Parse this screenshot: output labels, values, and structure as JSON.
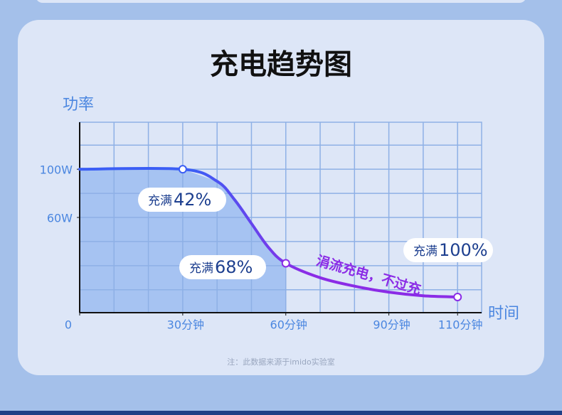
{
  "chart_data": {
    "type": "line",
    "title": "充电趋势图",
    "y_label": "功率",
    "x_label": "时间",
    "x": [
      0,
      30,
      40,
      45,
      50,
      55,
      60,
      70,
      80,
      90,
      100,
      110
    ],
    "series": [
      {
        "color": "#3b5ef5",
        "end_color": "#8b2ce6",
        "values": [
          100,
          100,
          90,
          75,
          55,
          35,
          22,
          10,
          3,
          -2,
          -5,
          -6
        ]
      }
    ],
    "area_color": "#a6c3f2",
    "xlim": [
      0,
      117
    ],
    "ylim": [
      -19,
      139
    ],
    "xticks": [
      0,
      {
        "value": 30,
        "label": "30分钟"
      },
      {
        "value": 60,
        "label": "60分钟"
      },
      {
        "value": 90,
        "label": "90分钟"
      },
      {
        "value": 110,
        "label": "110分钟"
      }
    ],
    "yticks": [
      {
        "value": 60,
        "label": "60W"
      },
      {
        "value": 100,
        "label": "100W"
      }
    ],
    "grid": true,
    "x_grid": [
      10,
      20,
      30,
      40,
      50,
      60,
      70,
      80,
      90,
      100,
      110
    ],
    "y_grid": [
      0,
      20,
      40,
      60,
      80,
      100,
      120
    ],
    "callouts": [
      {
        "text": "充满",
        "value": "42%"
      },
      {
        "text": "充满",
        "value": "68%"
      },
      {
        "text": "充满",
        "value": "100%"
      }
    ],
    "annotation": "涓流充电，不过充",
    "footnote": "注：此数据来源于imido实验室"
  }
}
